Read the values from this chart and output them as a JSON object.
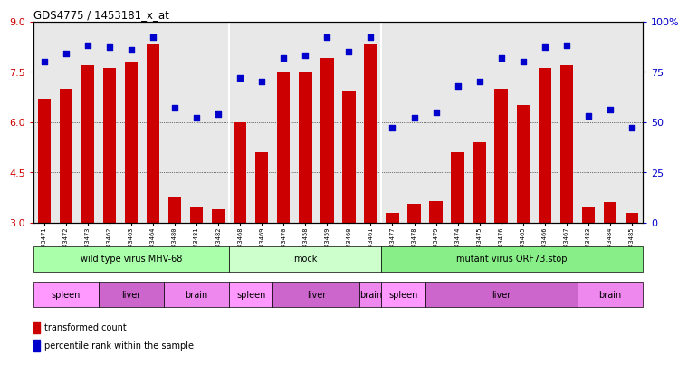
{
  "title": "GDS4775 / 1453181_x_at",
  "samples": [
    "GSM1243471",
    "GSM1243472",
    "GSM1243473",
    "GSM1243462",
    "GSM1243463",
    "GSM1243464",
    "GSM1243480",
    "GSM1243481",
    "GSM1243482",
    "GSM1243468",
    "GSM1243469",
    "GSM1243470",
    "GSM1243458",
    "GSM1243459",
    "GSM1243460",
    "GSM1243461",
    "GSM1243477",
    "GSM1243478",
    "GSM1243479",
    "GSM1243474",
    "GSM1243475",
    "GSM1243476",
    "GSM1243465",
    "GSM1243466",
    "GSM1243467",
    "GSM1243483",
    "GSM1243484",
    "GSM1243485"
  ],
  "bar_values": [
    6.7,
    7.0,
    7.7,
    7.6,
    7.8,
    8.3,
    3.75,
    3.45,
    3.4,
    6.0,
    5.1,
    7.5,
    7.5,
    7.9,
    6.9,
    8.3,
    3.3,
    3.55,
    3.65,
    5.1,
    5.4,
    7.0,
    6.5,
    7.6,
    7.7,
    3.45,
    3.6,
    3.3
  ],
  "dot_values": [
    80,
    84,
    88,
    87,
    86,
    92,
    57,
    52,
    54,
    72,
    70,
    82,
    83,
    92,
    85,
    92,
    47,
    52,
    55,
    68,
    70,
    82,
    80,
    87,
    88,
    53,
    56,
    47
  ],
  "ylim_left": [
    3,
    9
  ],
  "ylim_right": [
    0,
    100
  ],
  "yticks_left": [
    3,
    4.5,
    6,
    7.5,
    9
  ],
  "yticks_right": [
    0,
    25,
    50,
    75,
    100
  ],
  "bar_color": "#cc0000",
  "dot_color": "#0000cc",
  "infection_groups": [
    {
      "label": "wild type virus MHV-68",
      "start": 0,
      "end": 9,
      "color": "#aaffaa"
    },
    {
      "label": "mock",
      "start": 9,
      "end": 16,
      "color": "#ccffcc"
    },
    {
      "label": "mutant virus ORF73.stop",
      "start": 16,
      "end": 28,
      "color": "#88ee88"
    }
  ],
  "tissue_groups": [
    {
      "label": "spleen",
      "start": 0,
      "end": 3,
      "color": "#ff99ff"
    },
    {
      "label": "liver",
      "start": 3,
      "end": 6,
      "color": "#cc66cc"
    },
    {
      "label": "brain",
      "start": 6,
      "end": 9,
      "color": "#ee88ee"
    },
    {
      "label": "spleen",
      "start": 9,
      "end": 11,
      "color": "#ff99ff"
    },
    {
      "label": "liver",
      "start": 11,
      "end": 15,
      "color": "#cc66cc"
    },
    {
      "label": "brain",
      "start": 15,
      "end": 16,
      "color": "#ee88ee"
    },
    {
      "label": "spleen",
      "start": 16,
      "end": 18,
      "color": "#ff99ff"
    },
    {
      "label": "liver",
      "start": 18,
      "end": 25,
      "color": "#cc66cc"
    },
    {
      "label": "brain",
      "start": 25,
      "end": 28,
      "color": "#ee88ee"
    }
  ],
  "bar_width": 0.6,
  "grid_color": "#888888",
  "chart_bg": "#e8e8e8"
}
